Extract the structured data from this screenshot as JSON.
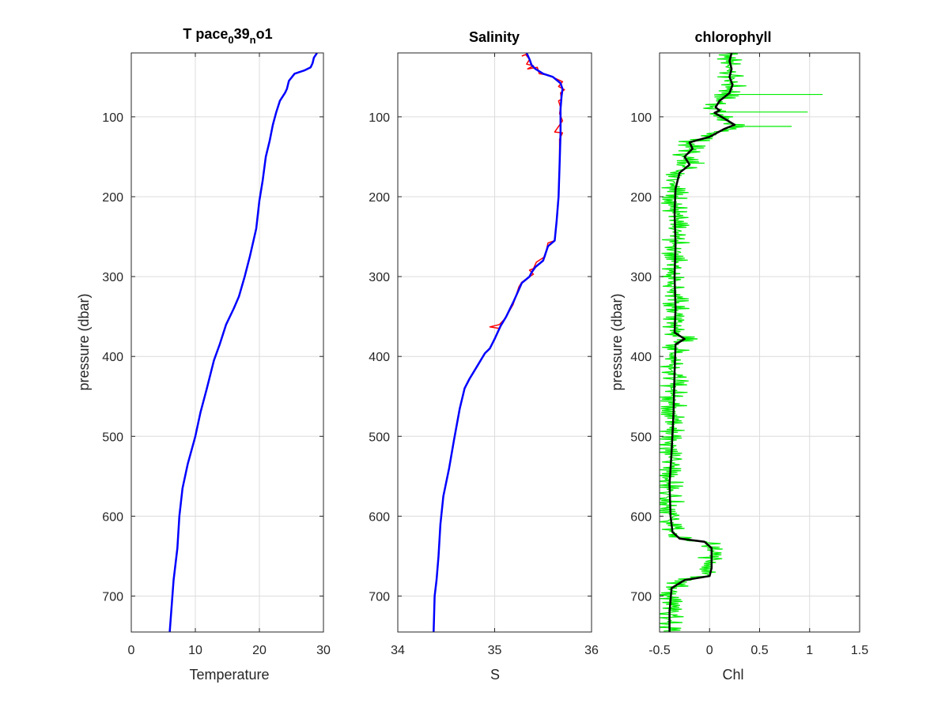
{
  "chart_data": [
    {
      "type": "line",
      "title": "T pace039no1",
      "title_parts": {
        "main": "T pace",
        "sub1": "0",
        "mid": "39",
        "sub2": "n",
        "end": "o1"
      },
      "xlabel": "Temperature",
      "ylabel": "pressure (dbar)",
      "xlim": [
        0,
        30
      ],
      "ylim": [
        20,
        745
      ],
      "y_reversed": true,
      "grid": true,
      "xticks": [
        "0",
        "10",
        "20",
        "30"
      ],
      "yticks": [
        "100",
        "200",
        "300",
        "400",
        "500",
        "600",
        "700"
      ],
      "series": [
        {
          "color": "#0000ff",
          "points": [
            [
              29.0,
              20
            ],
            [
              28.5,
              26
            ],
            [
              28.3,
              33
            ],
            [
              28.0,
              38
            ],
            [
              27.0,
              42
            ],
            [
              25.5,
              46
            ],
            [
              24.6,
              55
            ],
            [
              24.3,
              65
            ],
            [
              24.0,
              70
            ],
            [
              23.2,
              80
            ],
            [
              22.6,
              95
            ],
            [
              22.1,
              110
            ],
            [
              21.6,
              130
            ],
            [
              21.0,
              150
            ],
            [
              20.5,
              180
            ],
            [
              20.0,
              205
            ],
            [
              19.5,
              240
            ],
            [
              18.5,
              275
            ],
            [
              17.7,
              300
            ],
            [
              16.8,
              325
            ],
            [
              16.0,
              340
            ],
            [
              14.8,
              360
            ],
            [
              13.8,
              385
            ],
            [
              12.9,
              405
            ],
            [
              11.8,
              440
            ],
            [
              10.8,
              470
            ],
            [
              10.0,
              500
            ],
            [
              8.8,
              535
            ],
            [
              8.0,
              565
            ],
            [
              7.5,
              600
            ],
            [
              7.2,
              640
            ],
            [
              6.6,
              680
            ],
            [
              6.0,
              745
            ]
          ]
        }
      ]
    },
    {
      "type": "line",
      "title": "Salinity",
      "xlabel": "S",
      "ylabel": "",
      "xlim": [
        34,
        36
      ],
      "ylim": [
        20,
        745
      ],
      "y_reversed": true,
      "grid": true,
      "xticks": [
        "34",
        "35",
        "36"
      ],
      "yticks": [
        "100",
        "200",
        "300",
        "400",
        "500",
        "600",
        "700"
      ],
      "series": [
        {
          "color": "#ff0000",
          "points": [
            [
              35.28,
              24
            ],
            [
              35.32,
              22
            ],
            [
              35.36,
              28
            ],
            [
              35.33,
              34
            ],
            [
              35.4,
              36
            ],
            [
              35.34,
              40
            ],
            [
              35.44,
              38
            ],
            [
              35.46,
              46
            ],
            [
              35.56,
              48
            ],
            [
              35.63,
              52
            ],
            [
              35.7,
              56
            ],
            [
              35.66,
              62
            ],
            [
              35.72,
              66
            ],
            [
              35.68,
              70
            ],
            [
              35.69,
              78
            ],
            [
              35.66,
              80
            ],
            [
              35.68,
              88
            ],
            [
              35.67,
              96
            ],
            [
              35.7,
              105
            ],
            [
              35.62,
              119
            ],
            [
              35.7,
              120
            ],
            [
              35.67,
              128
            ],
            [
              35.67,
              160
            ],
            [
              35.66,
              200
            ],
            [
              35.64,
              230
            ],
            [
              35.62,
              255
            ],
            [
              35.55,
              258
            ],
            [
              35.52,
              275
            ],
            [
              35.43,
              282
            ],
            [
              35.4,
              290
            ],
            [
              35.36,
              292
            ],
            [
              35.4,
              297
            ],
            [
              35.36,
              300
            ],
            [
              35.28,
              307
            ],
            [
              35.25,
              313
            ],
            [
              35.19,
              335
            ],
            [
              35.11,
              352
            ],
            [
              35.05,
              360
            ],
            [
              34.95,
              363
            ],
            [
              35.05,
              365
            ],
            [
              35.0,
              378
            ],
            [
              34.96,
              388
            ],
            [
              34.9,
              396
            ],
            [
              34.82,
              412
            ],
            [
              34.74,
              428
            ],
            [
              34.69,
              440
            ],
            [
              34.64,
              465
            ],
            [
              34.58,
              505
            ],
            [
              34.53,
              540
            ],
            [
              34.47,
              575
            ],
            [
              34.44,
              610
            ],
            [
              34.42,
              650
            ],
            [
              34.4,
              680
            ],
            [
              34.38,
              700
            ],
            [
              34.37,
              745
            ]
          ]
        },
        {
          "color": "#0000ff",
          "points": [
            [
              35.33,
              20
            ],
            [
              35.36,
              28
            ],
            [
              35.38,
              35
            ],
            [
              35.42,
              40
            ],
            [
              35.5,
              46
            ],
            [
              35.6,
              50
            ],
            [
              35.68,
              58
            ],
            [
              35.7,
              65
            ],
            [
              35.69,
              75
            ],
            [
              35.68,
              90
            ],
            [
              35.68,
              120
            ],
            [
              35.67,
              160
            ],
            [
              35.66,
              200
            ],
            [
              35.64,
              230
            ],
            [
              35.62,
              255
            ],
            [
              35.55,
              262
            ],
            [
              35.5,
              280
            ],
            [
              35.42,
              288
            ],
            [
              35.38,
              295
            ],
            [
              35.36,
              300
            ],
            [
              35.28,
              308
            ],
            [
              35.2,
              330
            ],
            [
              35.12,
              350
            ],
            [
              35.06,
              362
            ],
            [
              35.0,
              378
            ],
            [
              34.95,
              390
            ],
            [
              34.9,
              396
            ],
            [
              34.82,
              412
            ],
            [
              34.74,
              428
            ],
            [
              34.69,
              440
            ],
            [
              34.64,
              465
            ],
            [
              34.58,
              505
            ],
            [
              34.53,
              540
            ],
            [
              34.47,
              575
            ],
            [
              34.44,
              610
            ],
            [
              34.42,
              650
            ],
            [
              34.4,
              680
            ],
            [
              34.38,
              700
            ],
            [
              34.37,
              745
            ]
          ]
        }
      ]
    },
    {
      "type": "line",
      "title": "chlorophyll",
      "xlabel": "Chl",
      "ylabel": "pressure (dbar)",
      "xlim": [
        -0.5,
        1.5
      ],
      "ylim": [
        20,
        745
      ],
      "y_reversed": true,
      "grid": true,
      "xticks": [
        "-0.5",
        "0",
        "0.5",
        "1",
        "1.5"
      ],
      "yticks": [
        "100",
        "200",
        "300",
        "400",
        "500",
        "600",
        "700"
      ],
      "series": [
        {
          "color": "#00ee00",
          "band_halfwidth": 0.09,
          "points": [
            [
              0.22,
              20
            ],
            [
              0.2,
              30
            ],
            [
              0.22,
              40
            ],
            [
              0.2,
              50
            ],
            [
              0.23,
              60
            ],
            [
              0.2,
              70
            ],
            [
              0.1,
              80
            ],
            [
              0.06,
              88
            ],
            [
              0.1,
              92
            ],
            [
              0.05,
              95
            ],
            [
              0.12,
              100
            ],
            [
              0.25,
              110
            ],
            [
              0.15,
              115
            ],
            [
              0.0,
              125
            ],
            [
              -0.2,
              132
            ],
            [
              -0.17,
              140
            ],
            [
              -0.25,
              150
            ],
            [
              -0.2,
              160
            ],
            [
              -0.3,
              170
            ],
            [
              -0.34,
              190
            ],
            [
              -0.35,
              220
            ],
            [
              -0.34,
              260
            ],
            [
              -0.35,
              300
            ],
            [
              -0.34,
              340
            ],
            [
              -0.35,
              370
            ],
            [
              -0.25,
              378
            ],
            [
              -0.34,
              385
            ],
            [
              -0.35,
              420
            ],
            [
              -0.36,
              470
            ],
            [
              -0.38,
              520
            ],
            [
              -0.4,
              560
            ],
            [
              -0.39,
              600
            ],
            [
              -0.37,
              620
            ],
            [
              -0.3,
              628
            ],
            [
              -0.05,
              632
            ],
            [
              0.02,
              640
            ],
            [
              0.02,
              665
            ],
            [
              0.0,
              675
            ],
            [
              -0.25,
              680
            ],
            [
              -0.38,
              690
            ],
            [
              -0.4,
              720
            ],
            [
              -0.4,
              745
            ]
          ],
          "spikes": [
            [
              94,
              0.98
            ],
            [
              72,
              1.13
            ],
            [
              112,
              0.82
            ],
            [
              378,
              -0.12
            ],
            [
              158,
              -0.05
            ],
            [
              628,
              -0.2
            ]
          ]
        },
        {
          "color": "#000000",
          "points": [
            [
              0.22,
              20
            ],
            [
              0.2,
              30
            ],
            [
              0.22,
              40
            ],
            [
              0.2,
              50
            ],
            [
              0.23,
              60
            ],
            [
              0.2,
              70
            ],
            [
              0.1,
              80
            ],
            [
              0.06,
              88
            ],
            [
              0.1,
              92
            ],
            [
              0.05,
              95
            ],
            [
              0.12,
              100
            ],
            [
              0.25,
              110
            ],
            [
              0.15,
              115
            ],
            [
              0.0,
              125
            ],
            [
              -0.2,
              132
            ],
            [
              -0.17,
              140
            ],
            [
              -0.25,
              150
            ],
            [
              -0.2,
              160
            ],
            [
              -0.3,
              170
            ],
            [
              -0.34,
              190
            ],
            [
              -0.35,
              220
            ],
            [
              -0.34,
              260
            ],
            [
              -0.35,
              300
            ],
            [
              -0.34,
              340
            ],
            [
              -0.35,
              370
            ],
            [
              -0.25,
              378
            ],
            [
              -0.34,
              385
            ],
            [
              -0.35,
              420
            ],
            [
              -0.36,
              470
            ],
            [
              -0.38,
              520
            ],
            [
              -0.4,
              560
            ],
            [
              -0.39,
              600
            ],
            [
              -0.37,
              620
            ],
            [
              -0.3,
              628
            ],
            [
              -0.05,
              632
            ],
            [
              0.02,
              640
            ],
            [
              0.02,
              665
            ],
            [
              0.0,
              675
            ],
            [
              -0.25,
              680
            ],
            [
              -0.38,
              690
            ],
            [
              -0.4,
              720
            ],
            [
              -0.4,
              745
            ]
          ]
        }
      ]
    }
  ]
}
